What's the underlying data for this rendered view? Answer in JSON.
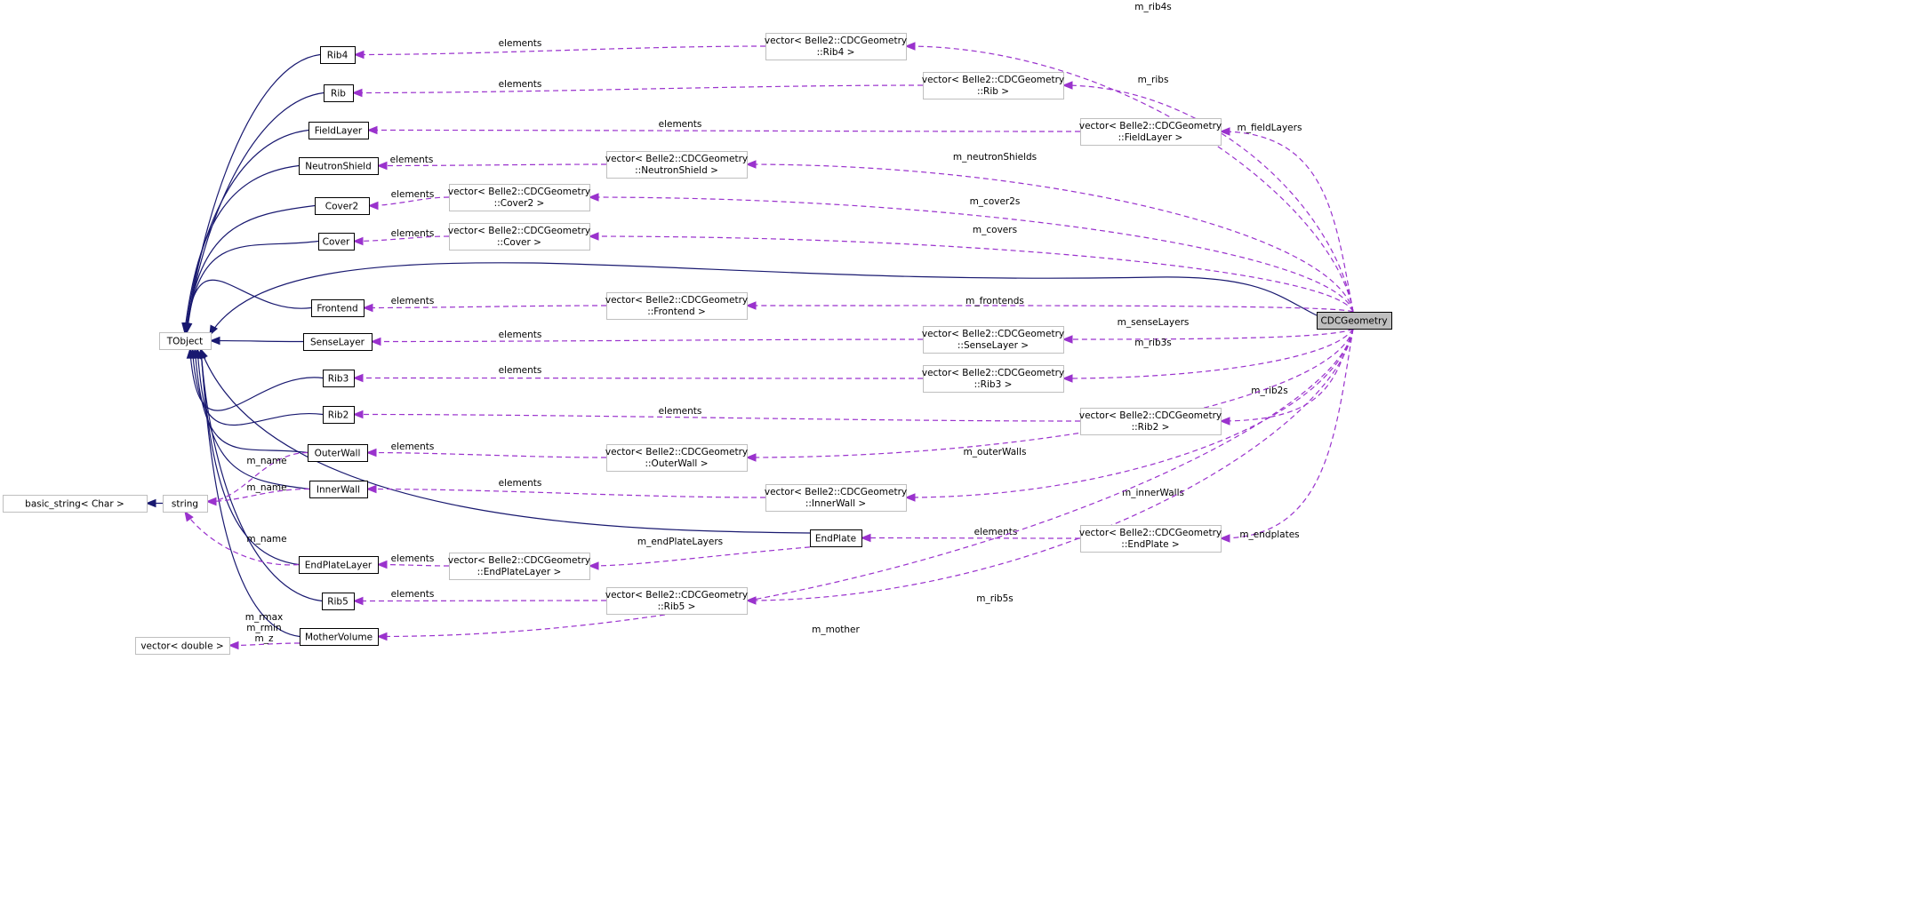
{
  "diagram": {
    "type": "collaboration-graph",
    "colors": {
      "inheritance": "#191970",
      "usage": "#9a32cd",
      "focus_node_fill": "#bfbfbf",
      "external_node_border": "#bfbfbf"
    },
    "nodes": [
      {
        "id": "CDCGeometry",
        "lines": [
          "CDCGeometry"
        ],
        "kind": "focus"
      },
      {
        "id": "TObject",
        "lines": [
          "TObject"
        ],
        "kind": "external"
      },
      {
        "id": "basic_string",
        "lines": [
          "basic_string< Char >"
        ],
        "kind": "external"
      },
      {
        "id": "string",
        "lines": [
          "string"
        ],
        "kind": "external"
      },
      {
        "id": "vdouble",
        "lines": [
          "vector< double >"
        ],
        "kind": "external"
      },
      {
        "id": "Rib4",
        "lines": [
          "Rib4"
        ],
        "kind": "class"
      },
      {
        "id": "Rib",
        "lines": [
          "Rib"
        ],
        "kind": "class"
      },
      {
        "id": "FieldLayer",
        "lines": [
          "FieldLayer"
        ],
        "kind": "class"
      },
      {
        "id": "NeutronShield",
        "lines": [
          "NeutronShield"
        ],
        "kind": "class"
      },
      {
        "id": "Cover2",
        "lines": [
          "Cover2"
        ],
        "kind": "class"
      },
      {
        "id": "Cover",
        "lines": [
          "Cover"
        ],
        "kind": "class"
      },
      {
        "id": "Frontend",
        "lines": [
          "Frontend"
        ],
        "kind": "class"
      },
      {
        "id": "SenseLayer",
        "lines": [
          "SenseLayer"
        ],
        "kind": "class"
      },
      {
        "id": "Rib3",
        "lines": [
          "Rib3"
        ],
        "kind": "class"
      },
      {
        "id": "Rib2",
        "lines": [
          "Rib2"
        ],
        "kind": "class"
      },
      {
        "id": "OuterWall",
        "lines": [
          "OuterWall"
        ],
        "kind": "class"
      },
      {
        "id": "InnerWall",
        "lines": [
          "InnerWall"
        ],
        "kind": "class"
      },
      {
        "id": "EndPlate",
        "lines": [
          "EndPlate"
        ],
        "kind": "class"
      },
      {
        "id": "EndPlateLayer",
        "lines": [
          "EndPlateLayer"
        ],
        "kind": "class"
      },
      {
        "id": "Rib5",
        "lines": [
          "Rib5"
        ],
        "kind": "class"
      },
      {
        "id": "MotherVolume",
        "lines": [
          "MotherVolume"
        ],
        "kind": "class"
      },
      {
        "id": "vRib4",
        "lines": [
          "vector< Belle2::CDCGeometry",
          "::Rib4 >"
        ],
        "kind": "external"
      },
      {
        "id": "vRib",
        "lines": [
          "vector< Belle2::CDCGeometry",
          "::Rib >"
        ],
        "kind": "external"
      },
      {
        "id": "vFieldLayer",
        "lines": [
          "vector< Belle2::CDCGeometry",
          "::FieldLayer >"
        ],
        "kind": "external"
      },
      {
        "id": "vNeutronShield",
        "lines": [
          "vector< Belle2::CDCGeometry",
          "::NeutronShield >"
        ],
        "kind": "external"
      },
      {
        "id": "vCover2",
        "lines": [
          "vector< Belle2::CDCGeometry",
          "::Cover2 >"
        ],
        "kind": "external"
      },
      {
        "id": "vCover",
        "lines": [
          "vector< Belle2::CDCGeometry",
          "::Cover >"
        ],
        "kind": "external"
      },
      {
        "id": "vFrontend",
        "lines": [
          "vector< Belle2::CDCGeometry",
          "::Frontend >"
        ],
        "kind": "external"
      },
      {
        "id": "vSenseLayer",
        "lines": [
          "vector< Belle2::CDCGeometry",
          "::SenseLayer >"
        ],
        "kind": "external"
      },
      {
        "id": "vRib3",
        "lines": [
          "vector< Belle2::CDCGeometry",
          "::Rib3 >"
        ],
        "kind": "external"
      },
      {
        "id": "vRib2",
        "lines": [
          "vector< Belle2::CDCGeometry",
          "::Rib2 >"
        ],
        "kind": "external"
      },
      {
        "id": "vOuterWall",
        "lines": [
          "vector< Belle2::CDCGeometry",
          "::OuterWall >"
        ],
        "kind": "external"
      },
      {
        "id": "vInnerWall",
        "lines": [
          "vector< Belle2::CDCGeometry",
          "::InnerWall >"
        ],
        "kind": "external"
      },
      {
        "id": "vEndPlate",
        "lines": [
          "vector< Belle2::CDCGeometry",
          "::EndPlate >"
        ],
        "kind": "external"
      },
      {
        "id": "vEndPlateLayer",
        "lines": [
          "vector< Belle2::CDCGeometry",
          "::EndPlateLayer >"
        ],
        "kind": "external"
      },
      {
        "id": "vRib5",
        "lines": [
          "vector< Belle2::CDCGeometry",
          "::Rib5 >"
        ],
        "kind": "external"
      }
    ],
    "edges": [
      {
        "from": "Rib4",
        "to": "TObject",
        "style": "inheritance",
        "label": ""
      },
      {
        "from": "Rib",
        "to": "TObject",
        "style": "inheritance",
        "label": ""
      },
      {
        "from": "FieldLayer",
        "to": "TObject",
        "style": "inheritance",
        "label": ""
      },
      {
        "from": "NeutronShield",
        "to": "TObject",
        "style": "inheritance",
        "label": ""
      },
      {
        "from": "Cover2",
        "to": "TObject",
        "style": "inheritance",
        "label": ""
      },
      {
        "from": "Cover",
        "to": "TObject",
        "style": "inheritance",
        "label": ""
      },
      {
        "from": "Frontend",
        "to": "TObject",
        "style": "inheritance",
        "label": ""
      },
      {
        "from": "SenseLayer",
        "to": "TObject",
        "style": "inheritance",
        "label": ""
      },
      {
        "from": "Rib3",
        "to": "TObject",
        "style": "inheritance",
        "label": ""
      },
      {
        "from": "Rib2",
        "to": "TObject",
        "style": "inheritance",
        "label": ""
      },
      {
        "from": "OuterWall",
        "to": "TObject",
        "style": "inheritance",
        "label": ""
      },
      {
        "from": "InnerWall",
        "to": "TObject",
        "style": "inheritance",
        "label": ""
      },
      {
        "from": "EndPlate",
        "to": "TObject",
        "style": "inheritance",
        "label": ""
      },
      {
        "from": "EndPlateLayer",
        "to": "TObject",
        "style": "inheritance",
        "label": ""
      },
      {
        "from": "Rib5",
        "to": "TObject",
        "style": "inheritance",
        "label": ""
      },
      {
        "from": "MotherVolume",
        "to": "TObject",
        "style": "inheritance",
        "label": ""
      },
      {
        "from": "CDCGeometry",
        "to": "TObject",
        "style": "inheritance",
        "label": ""
      },
      {
        "from": "string",
        "to": "basic_string",
        "style": "inheritance",
        "label": ""
      },
      {
        "from": "vRib4",
        "to": "Rib4",
        "style": "usage",
        "label": "elements"
      },
      {
        "from": "vRib",
        "to": "Rib",
        "style": "usage",
        "label": "elements"
      },
      {
        "from": "vFieldLayer",
        "to": "FieldLayer",
        "style": "usage",
        "label": "elements"
      },
      {
        "from": "vNeutronShield",
        "to": "NeutronShield",
        "style": "usage",
        "label": "elements"
      },
      {
        "from": "vCover2",
        "to": "Cover2",
        "style": "usage",
        "label": "elements"
      },
      {
        "from": "vCover",
        "to": "Cover",
        "style": "usage",
        "label": "elements"
      },
      {
        "from": "vFrontend",
        "to": "Frontend",
        "style": "usage",
        "label": "elements"
      },
      {
        "from": "vSenseLayer",
        "to": "SenseLayer",
        "style": "usage",
        "label": "elements"
      },
      {
        "from": "vRib3",
        "to": "Rib3",
        "style": "usage",
        "label": "elements"
      },
      {
        "from": "vRib2",
        "to": "Rib2",
        "style": "usage",
        "label": "elements"
      },
      {
        "from": "vOuterWall",
        "to": "OuterWall",
        "style": "usage",
        "label": "elements"
      },
      {
        "from": "vInnerWall",
        "to": "InnerWall",
        "style": "usage",
        "label": "elements"
      },
      {
        "from": "vEndPlate",
        "to": "EndPlate",
        "style": "usage",
        "label": "elements"
      },
      {
        "from": "vEndPlateLayer",
        "to": "EndPlateLayer",
        "style": "usage",
        "label": "elements"
      },
      {
        "from": "vRib5",
        "to": "Rib5",
        "style": "usage",
        "label": "elements"
      },
      {
        "from": "OuterWall",
        "to": "string",
        "style": "usage",
        "label": "m_name"
      },
      {
        "from": "InnerWall",
        "to": "string",
        "style": "usage",
        "label": "m_name"
      },
      {
        "from": "EndPlateLayer",
        "to": "string",
        "style": "usage",
        "label": "m_name"
      },
      {
        "from": "MotherVolume",
        "to": "vdouble",
        "style": "usage",
        "label": "m_rmax\nm_rmin\nm_z"
      },
      {
        "from": "EndPlate",
        "to": "vEndPlateLayer",
        "style": "usage",
        "label": "m_endPlateLayers"
      },
      {
        "from": "CDCGeometry",
        "to": "vRib4",
        "style": "usage",
        "label": "m_rib4s"
      },
      {
        "from": "CDCGeometry",
        "to": "vRib",
        "style": "usage",
        "label": "m_ribs"
      },
      {
        "from": "CDCGeometry",
        "to": "vFieldLayer",
        "style": "usage",
        "label": "m_fieldLayers"
      },
      {
        "from": "CDCGeometry",
        "to": "vNeutronShield",
        "style": "usage",
        "label": "m_neutronShields"
      },
      {
        "from": "CDCGeometry",
        "to": "vCover2",
        "style": "usage",
        "label": "m_cover2s"
      },
      {
        "from": "CDCGeometry",
        "to": "vCover",
        "style": "usage",
        "label": "m_covers"
      },
      {
        "from": "CDCGeometry",
        "to": "vFrontend",
        "style": "usage",
        "label": "m_frontends"
      },
      {
        "from": "CDCGeometry",
        "to": "vSenseLayer",
        "style": "usage",
        "label": "m_senseLayers"
      },
      {
        "from": "CDCGeometry",
        "to": "vRib3",
        "style": "usage",
        "label": "m_rib3s"
      },
      {
        "from": "CDCGeometry",
        "to": "vRib2",
        "style": "usage",
        "label": "m_rib2s"
      },
      {
        "from": "CDCGeometry",
        "to": "vOuterWall",
        "style": "usage",
        "label": "m_outerWalls"
      },
      {
        "from": "CDCGeometry",
        "to": "vInnerWall",
        "style": "usage",
        "label": "m_innerWalls"
      },
      {
        "from": "CDCGeometry",
        "to": "vEndPlate",
        "style": "usage",
        "label": "m_endplates"
      },
      {
        "from": "CDCGeometry",
        "to": "vRib5",
        "style": "usage",
        "label": "m_rib5s"
      },
      {
        "from": "CDCGeometry",
        "to": "MotherVolume",
        "style": "usage",
        "label": "m_mother"
      }
    ]
  }
}
